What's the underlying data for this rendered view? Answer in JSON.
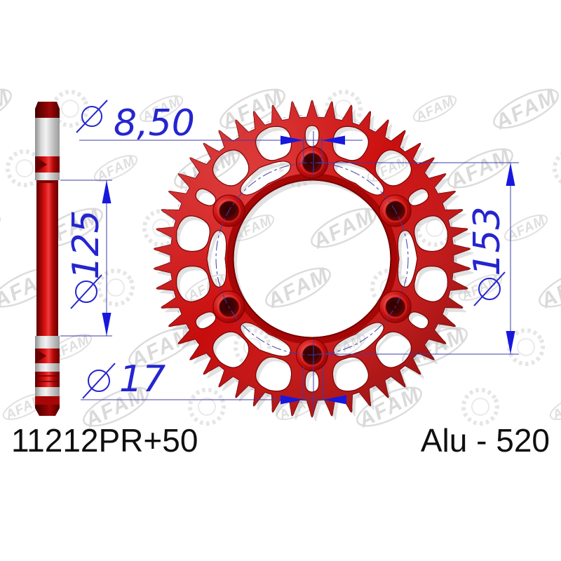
{
  "product": {
    "part_number": "11212PR+50",
    "material": "Alu - 520"
  },
  "dimensions": {
    "top_hole": {
      "symbol": "Ø",
      "value": "8,50"
    },
    "bore": {
      "symbol": "Ø",
      "value": "125"
    },
    "bottom_hole": {
      "symbol": "Ø",
      "value": "17"
    },
    "bolt_circle": {
      "symbol": "Ø",
      "value": "153"
    }
  },
  "watermark": {
    "text": "AFAM"
  },
  "sprocket": {
    "teeth": 50,
    "bolt_holes": 6
  },
  "colors": {
    "red": "#c90d0d",
    "dark_red": "#7b0505",
    "dim_blue": "#2525cf",
    "line_blue": "#3c3cab",
    "arrow_blue": "#1818dd",
    "label_black": "#0f0f0f",
    "watermark_gray": "#dadada"
  }
}
